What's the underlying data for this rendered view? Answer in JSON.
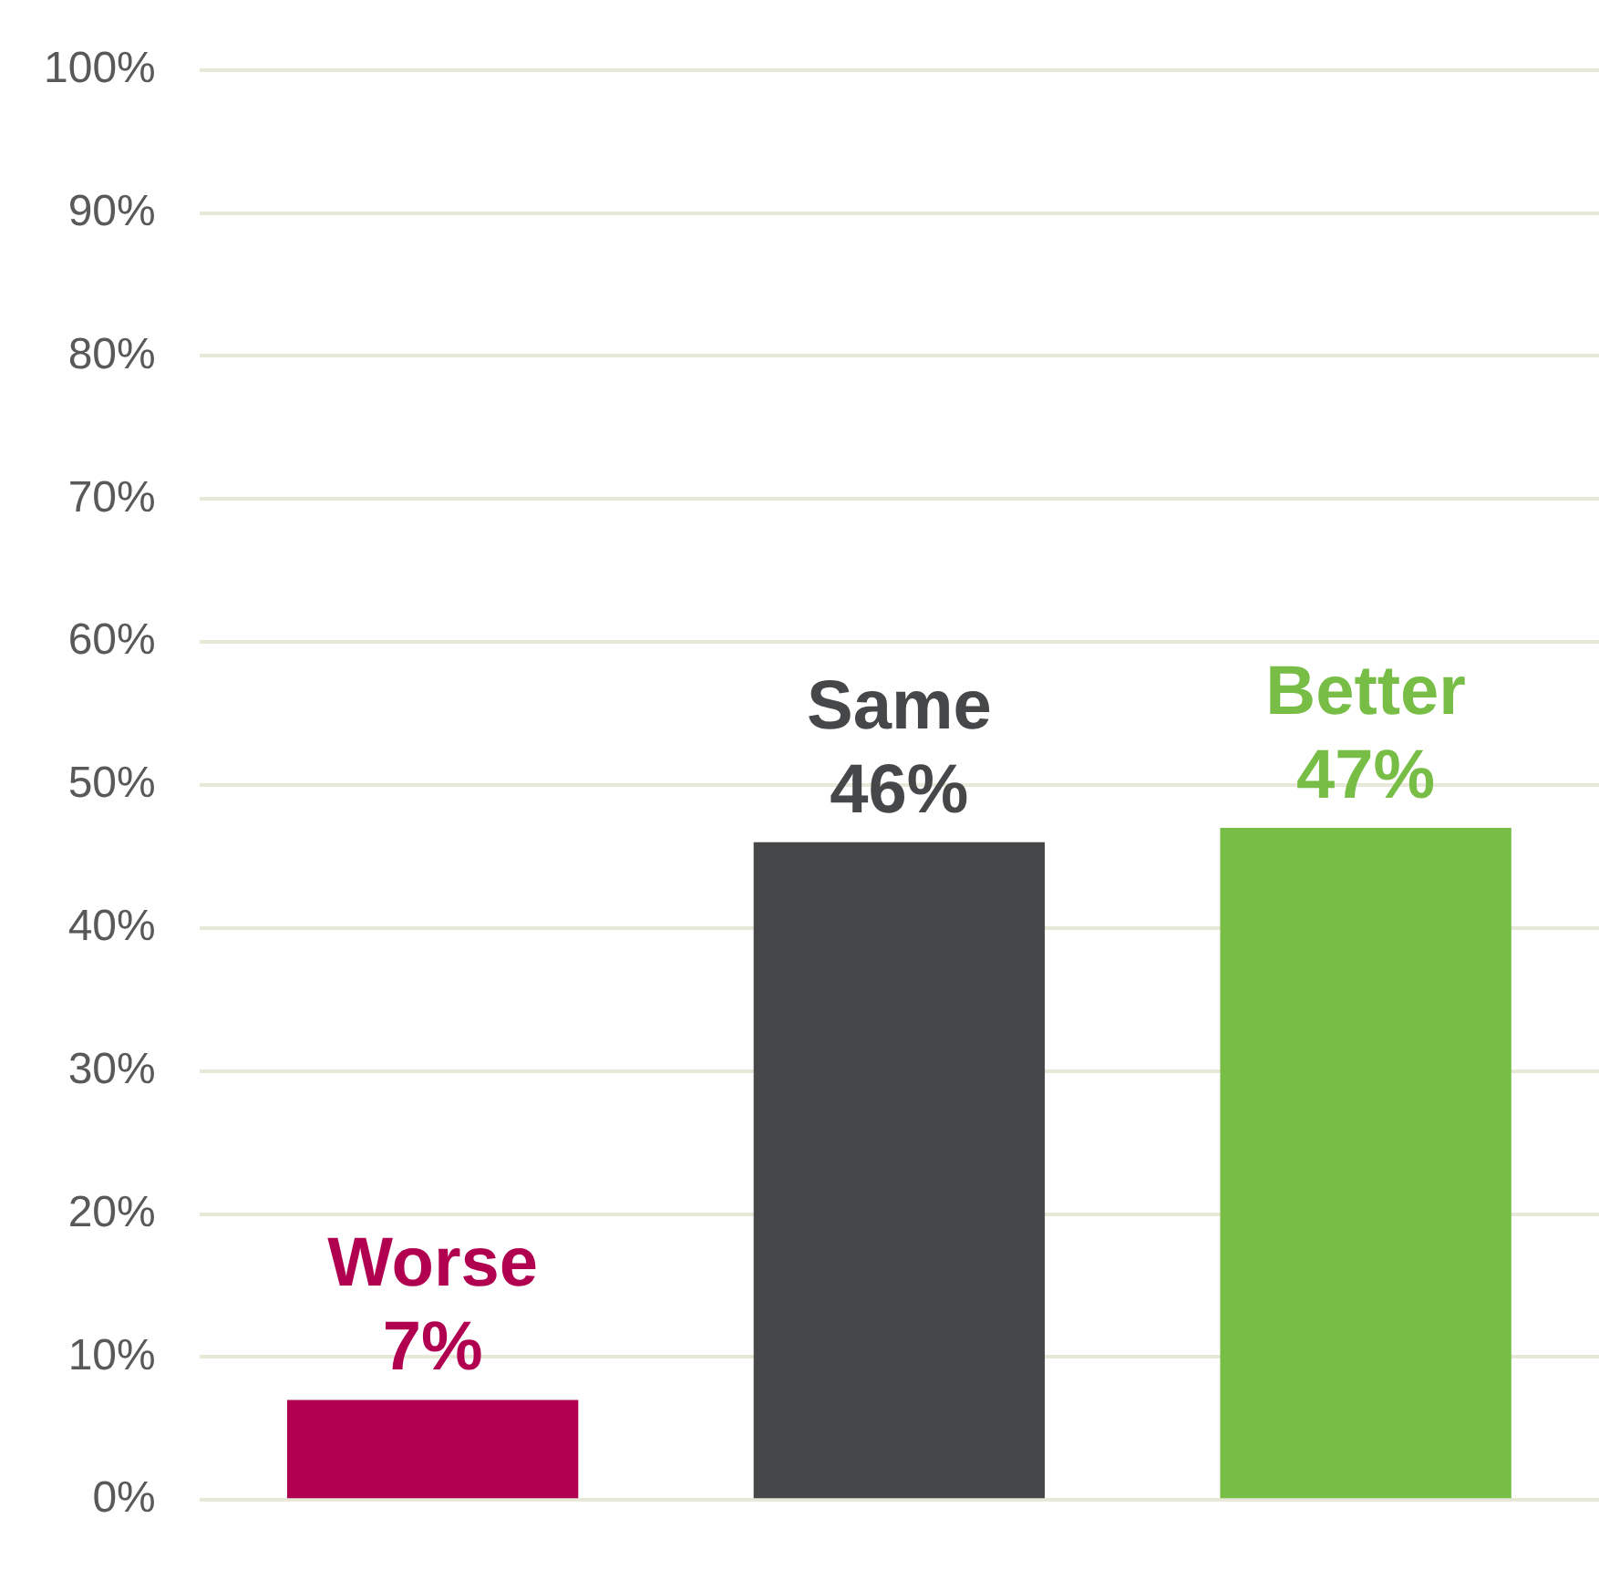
{
  "chart_data": {
    "type": "bar",
    "categories": [
      "Worse",
      "Same",
      "Better"
    ],
    "values": [
      7,
      46,
      47
    ],
    "colors": [
      "#b0004f",
      "#464749",
      "#78be46"
    ],
    "value_labels": [
      "7%",
      "46%",
      "47%"
    ],
    "ylim": [
      0,
      100
    ],
    "yticks": [
      {
        "value": 0,
        "label": "0%"
      },
      {
        "value": 10,
        "label": "10%"
      },
      {
        "value": 20,
        "label": "20%"
      },
      {
        "value": 30,
        "label": "30%"
      },
      {
        "value": 40,
        "label": "40%"
      },
      {
        "value": 50,
        "label": "50%"
      },
      {
        "value": 60,
        "label": "60%"
      },
      {
        "value": 70,
        "label": "70%"
      },
      {
        "value": 80,
        "label": "80%"
      },
      {
        "value": 90,
        "label": "90%"
      },
      {
        "value": 100,
        "label": "100%"
      }
    ],
    "grid": "y",
    "tick_labels": "y"
  }
}
